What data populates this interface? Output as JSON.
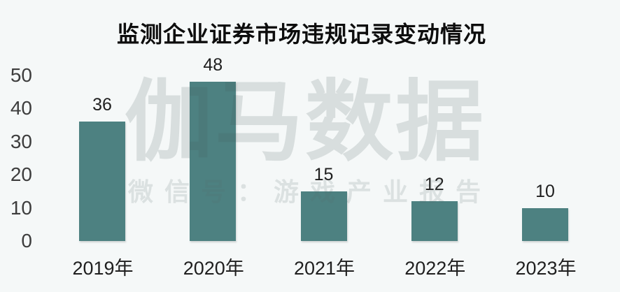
{
  "title": "监测企业证券市场违规记录变动情况",
  "watermark": {
    "line1": "伽马数据",
    "line2": "微信号：游戏产业报告"
  },
  "colors": {
    "background": "#f5f8f8",
    "bar": "#4d8181",
    "title_text": "#0d0d0d",
    "axis_text": "#3d3d3d",
    "value_text": "#1f1f1f"
  },
  "chart_data": {
    "type": "bar",
    "categories": [
      "2019年",
      "2020年",
      "2021年",
      "2022年",
      "2023年"
    ],
    "values": [
      36,
      48,
      15,
      12,
      10
    ],
    "title": "监测企业证券市场违规记录变动情况",
    "xlabel": "",
    "ylabel": "",
    "ylim": [
      0,
      50
    ],
    "yticks": [
      0,
      10,
      20,
      30,
      40,
      50
    ],
    "grid": false,
    "legend": false,
    "data_labels_shown": true,
    "bar_orientation": "vertical"
  }
}
